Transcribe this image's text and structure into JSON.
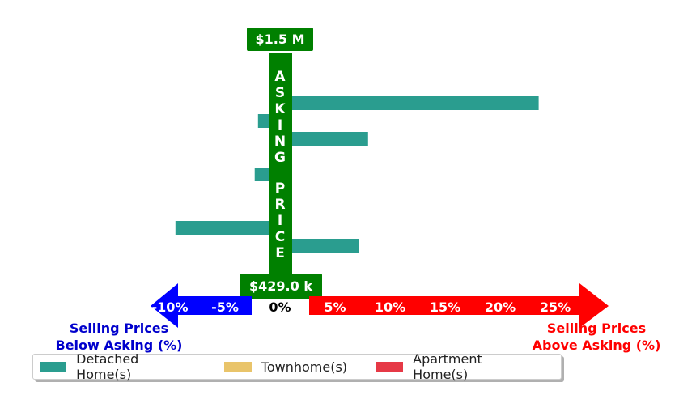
{
  "chart_data": {
    "type": "bar",
    "orientation": "horizontal",
    "xlim": [
      -12,
      29
    ],
    "x_ticks": [
      "-10%",
      "-5%",
      "0%",
      "5%",
      "10%",
      "15%",
      "20%",
      "25%"
    ],
    "x_tick_values": [
      -10,
      -5,
      0,
      5,
      10,
      15,
      20,
      25
    ],
    "center_label": "ASKING PRICE",
    "top_price_label": "$1.5 M",
    "bottom_price_label": "$429.0 k",
    "left_axis_label": [
      "Selling Prices",
      "Below Asking (%)"
    ],
    "right_axis_label": [
      "Selling Prices",
      "Above Asking (%)"
    ],
    "series": [
      {
        "name": "Detached Home(s)",
        "color": "#2a9d8f",
        "values": [
          0.1,
          0.2,
          23.5,
          -2.0,
          8.0,
          0.1,
          -2.3,
          0.1,
          0.1,
          -9.5,
          7.2,
          0.1
        ]
      },
      {
        "name": "Townhome(s)",
        "color": "#e9c46a",
        "values": []
      },
      {
        "name": "Apartment Home(s)",
        "color": "#e63946",
        "values": []
      }
    ],
    "colors": {
      "center_bar": "#008000",
      "below_arrow": "#0000ff",
      "above_arrow": "#ff0000",
      "below_text": "#0000cc",
      "above_text": "#ff0000"
    },
    "legend_position": "bottom-left"
  }
}
